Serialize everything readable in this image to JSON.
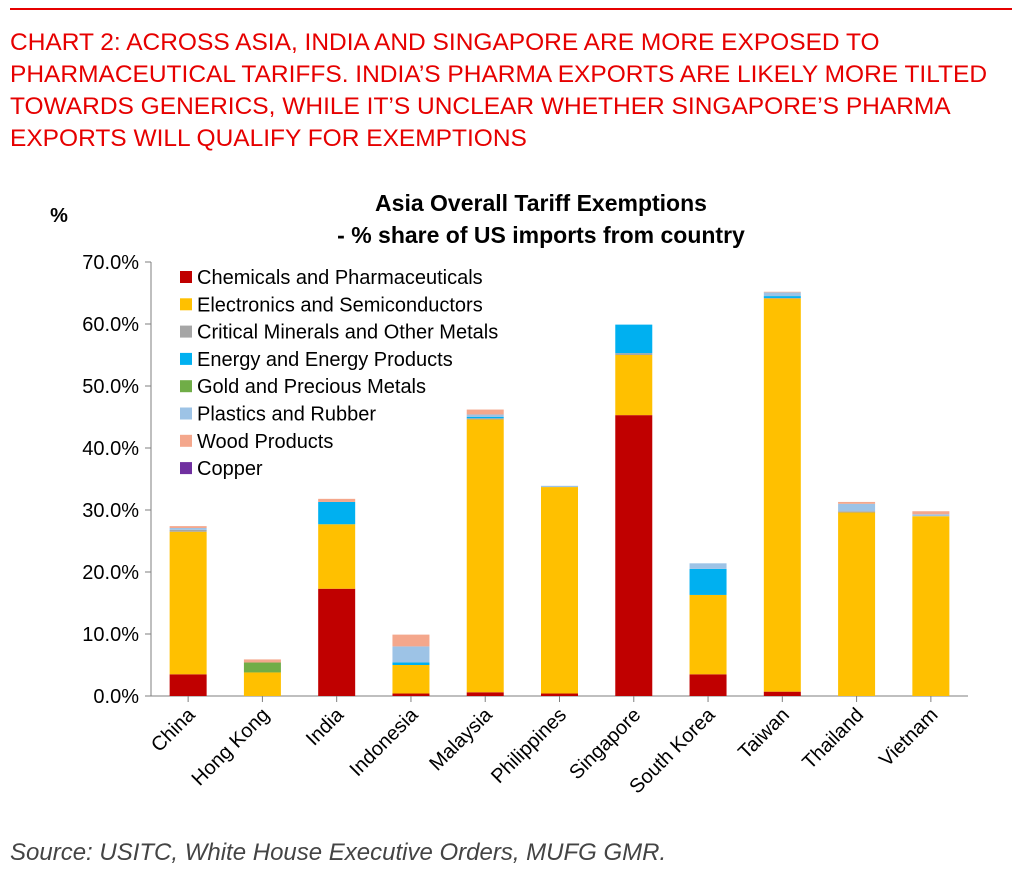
{
  "headline": "CHART 2: ACROSS ASIA, INDIA AND SINGAPORE ARE MORE EXPOSED TO PHARMACEUTICAL TARIFFS. INDIA’S PHARMA EXPORTS ARE LIKELY MORE TILTED TOWARDS GENERICS, WHILE IT’S UNCLEAR WHETHER SINGAPORE’S PHARMA EXPORTS WILL QUALIFY FOR EXEMPTIONS",
  "source": "Source: USITC, White House Executive Orders, MUFG GMR.",
  "colors": {
    "headline": "#e60000"
  },
  "chart_data": {
    "type": "bar",
    "stacked": true,
    "title": "Asia Overall Tariff Exemptions",
    "subtitle": "- % share of US imports from country",
    "ylabel": "%",
    "xlabel": "",
    "ylim": [
      0,
      70
    ],
    "yticks": [
      "0.0%",
      "10.0%",
      "20.0%",
      "30.0%",
      "40.0%",
      "50.0%",
      "60.0%",
      "70.0%"
    ],
    "ytick_values": [
      0,
      10,
      20,
      30,
      40,
      50,
      60,
      70
    ],
    "grid": false,
    "legend_position": "top-left",
    "categories": [
      "China",
      "Hong Kong",
      "India",
      "Indonesia",
      "Malaysia",
      "Philippines",
      "Singapore",
      "South Korea",
      "Taiwan",
      "Thailand",
      "Vietnam"
    ],
    "series": [
      {
        "name": "Chemicals and Pharmaceuticals",
        "color": "#c00000",
        "values": [
          3.5,
          0.0,
          17.3,
          0.4,
          0.6,
          0.4,
          45.3,
          3.5,
          0.7,
          0.0,
          0.0
        ]
      },
      {
        "name": "Electronics and Semiconductors",
        "color": "#ffc000",
        "values": [
          23.0,
          3.8,
          10.4,
          4.6,
          44.0,
          33.3,
          9.7,
          12.8,
          63.4,
          29.6,
          29.0
        ]
      },
      {
        "name": "Critical Minerals and Other Metals",
        "color": "#a6a6a6",
        "values": [
          0.3,
          0.0,
          0.0,
          0.0,
          0.2,
          0.0,
          0.3,
          0.0,
          0.1,
          0.2,
          0.0
        ]
      },
      {
        "name": "Energy and Energy Products",
        "color": "#00b0f0",
        "values": [
          0.0,
          0.0,
          3.6,
          0.4,
          0.2,
          0.0,
          4.6,
          4.2,
          0.3,
          0.0,
          0.0
        ]
      },
      {
        "name": "Gold and Precious Metals",
        "color": "#70ad47",
        "values": [
          0.0,
          1.6,
          0.0,
          0.0,
          0.0,
          0.0,
          0.0,
          0.0,
          0.0,
          0.0,
          0.0
        ]
      },
      {
        "name": "Plastics and Rubber",
        "color": "#9dc3e6",
        "values": [
          0.3,
          0.0,
          0.0,
          2.6,
          0.4,
          0.2,
          0.0,
          0.9,
          0.6,
          1.2,
          0.3
        ]
      },
      {
        "name": "Wood Products",
        "color": "#f4a78c",
        "values": [
          0.3,
          0.5,
          0.5,
          1.9,
          0.8,
          0.0,
          0.0,
          0.0,
          0.1,
          0.3,
          0.5
        ]
      },
      {
        "name": "Copper",
        "color": "#7030a0",
        "values": [
          0.0,
          0.0,
          0.0,
          0.0,
          0.0,
          0.0,
          0.0,
          0.0,
          0.0,
          0.0,
          0.0
        ]
      }
    ]
  }
}
